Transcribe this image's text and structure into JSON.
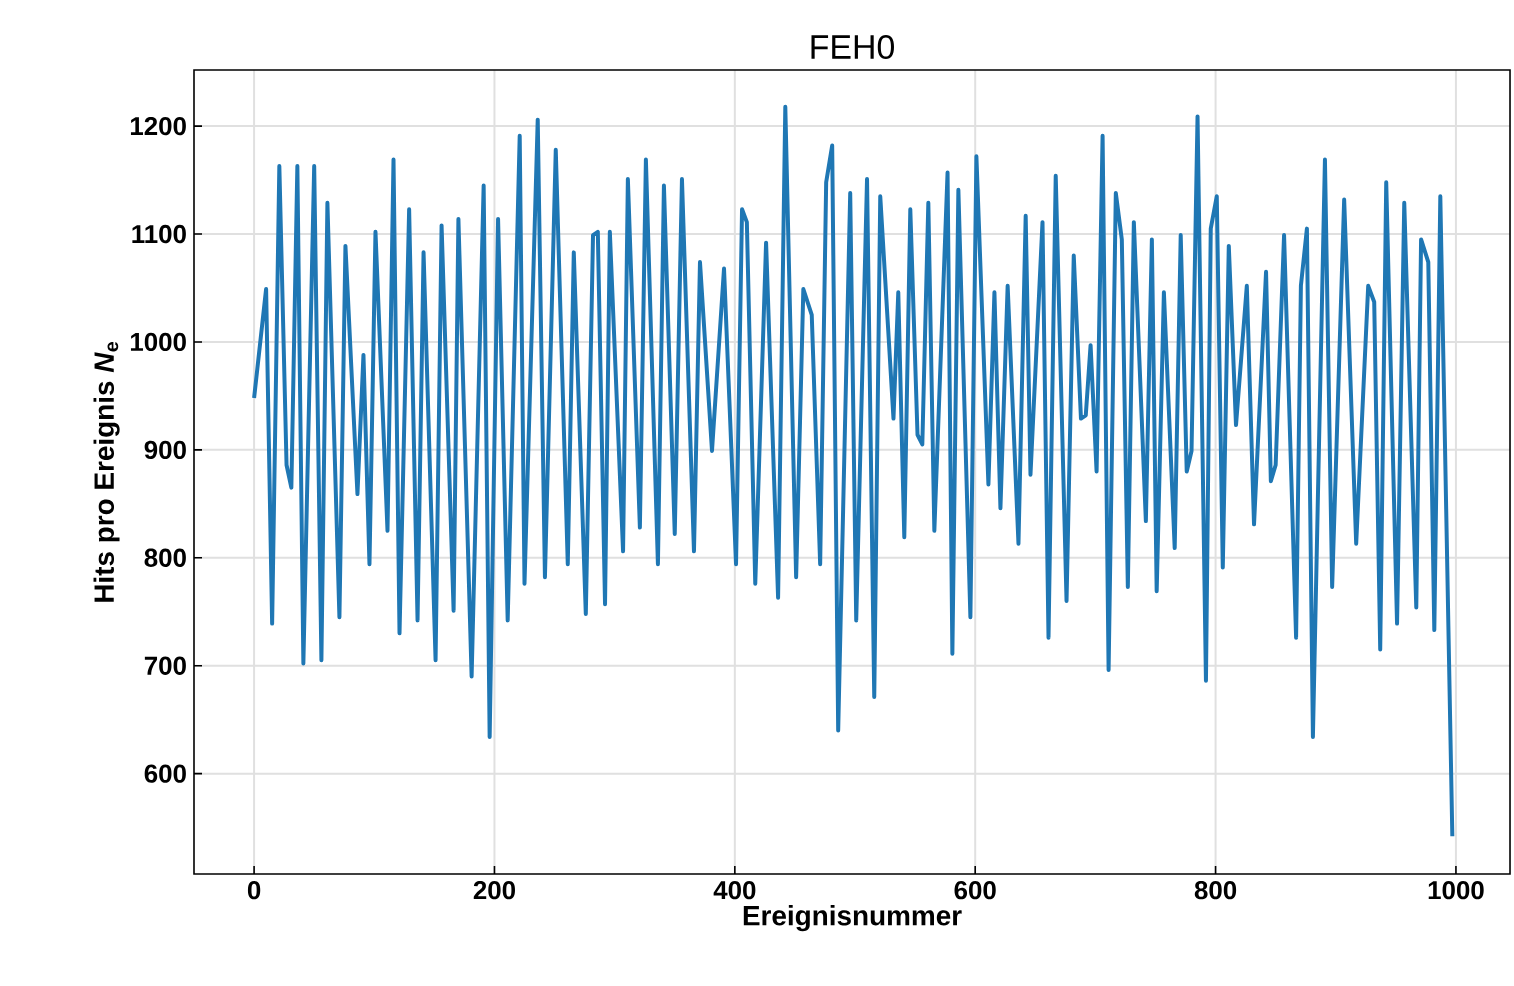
{
  "chart_data": {
    "type": "line",
    "title": "FEH0",
    "xlabel": "Ereignisnummer",
    "ylabel": "Hits pro Ereignis *N*$_{e}$",
    "x": [
      0,
      10,
      15,
      21,
      27,
      31,
      36,
      41,
      50,
      56,
      61,
      71,
      76,
      86,
      91,
      96,
      101,
      111,
      116,
      121,
      129,
      136,
      141,
      151,
      156,
      166,
      170,
      181,
      191,
      196,
      203,
      211,
      221,
      225,
      236,
      242,
      251,
      261,
      266,
      276,
      282,
      286,
      292,
      296,
      307,
      311,
      321,
      326,
      336,
      341,
      350,
      356,
      366,
      371,
      381,
      391,
      401,
      406,
      410,
      417,
      426,
      436,
      442,
      451,
      457,
      464,
      471,
      476,
      481,
      486,
      496,
      501,
      510,
      516,
      521,
      532,
      536,
      541,
      546,
      552,
      556,
      561,
      566,
      577,
      581,
      586,
      596,
      601,
      611,
      616,
      621,
      627,
      636,
      642,
      646,
      656,
      661,
      667,
      676,
      682,
      688,
      692,
      696,
      701,
      706,
      711,
      717,
      722,
      727,
      732,
      742,
      747,
      751,
      757,
      766,
      771,
      776,
      780,
      785,
      792,
      796,
      801,
      806,
      811,
      817,
      826,
      832,
      842,
      846,
      850,
      857,
      867,
      871,
      876,
      881,
      891,
      897,
      907,
      917,
      927,
      932,
      937,
      942,
      951,
      957,
      967,
      971,
      977,
      982,
      987,
      997
    ],
    "values": [
      948,
      1049,
      739,
      1163,
      886,
      865,
      1163,
      702,
      1163,
      705,
      1129,
      745,
      1089,
      859,
      988,
      794,
      1102,
      825,
      1169,
      730,
      1123,
      742,
      1083,
      705,
      1108,
      751,
      1114,
      690,
      1145,
      634,
      1114,
      742,
      1191,
      776,
      1206,
      782,
      1178,
      794,
      1083,
      748,
      1099,
      1102,
      757,
      1102,
      806,
      1151,
      828,
      1169,
      794,
      1145,
      822,
      1151,
      806,
      1074,
      899,
      1068,
      794,
      1123,
      1111,
      776,
      1092,
      763,
      1218,
      782,
      1049,
      1025,
      794,
      1148,
      1182,
      640,
      1138,
      742,
      1151,
      671,
      1135,
      929,
      1046,
      819,
      1123,
      914,
      905,
      1129,
      825,
      1157,
      711,
      1141,
      745,
      1172,
      868,
      1046,
      846,
      1052,
      813,
      1117,
      877,
      1111,
      726,
      1154,
      760,
      1080,
      929,
      932,
      997,
      880,
      1191,
      696,
      1138,
      1095,
      773,
      1111,
      834,
      1095,
      769,
      1046,
      809,
      1099,
      880,
      899,
      1209,
      686,
      1105,
      1135,
      791,
      1089,
      923,
      1052,
      831,
      1065,
      871,
      886,
      1099,
      726,
      1052,
      1105,
      634,
      1169,
      773,
      1132,
      813,
      1052,
      1037,
      715,
      1148,
      739,
      1129,
      754,
      1095,
      1074,
      733,
      1135,
      542
    ],
    "color": "#1f77b4",
    "line_style": "solid",
    "xlim": [
      -50,
      1045
    ],
    "ylim": [
      507,
      1252
    ],
    "xticks": [
      0,
      200,
      400,
      600,
      800,
      1000
    ],
    "yticks": [
      600,
      700,
      800,
      900,
      1000,
      1100,
      1200
    ],
    "grid": true
  }
}
